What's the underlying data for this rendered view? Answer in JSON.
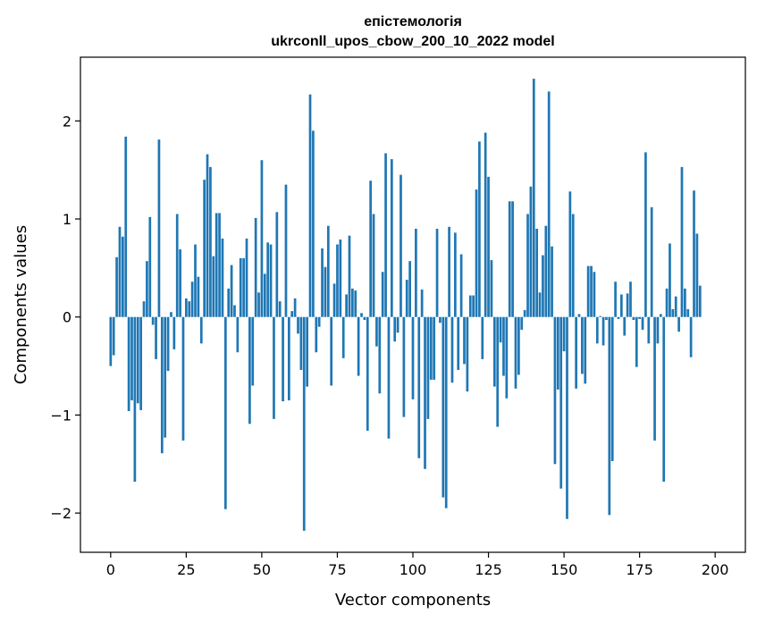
{
  "chart_data": {
    "type": "bar",
    "title": "епістемологія",
    "subtitle": "ukrconll_upos_cbow_200_10_2022 model",
    "xlabel": "Vector components",
    "ylabel": "Components values",
    "xlim": [
      -10,
      210
    ],
    "ylim": [
      -2.4,
      2.65
    ],
    "xticks": [
      0,
      25,
      50,
      75,
      100,
      125,
      150,
      175,
      200
    ],
    "yticks": [
      -2,
      -1,
      0,
      1,
      2
    ],
    "xtick_labels": [
      "0",
      "25",
      "50",
      "75",
      "100",
      "125",
      "150",
      "175",
      "200"
    ],
    "ytick_labels": [
      "−2",
      "−1",
      "0",
      "1",
      "2"
    ],
    "grid": false,
    "bar_color": "#1f77b4",
    "values": [
      -0.5,
      -0.39,
      0.61,
      0.92,
      0.82,
      1.84,
      -0.96,
      -0.85,
      -1.68,
      -0.88,
      -0.95,
      0.16,
      0.57,
      1.02,
      -0.08,
      -0.43,
      1.81,
      -1.39,
      -1.23,
      -0.55,
      0.05,
      -0.33,
      1.05,
      0.69,
      -1.26,
      0.19,
      0.16,
      0.36,
      0.74,
      0.41,
      -0.27,
      1.4,
      1.66,
      1.53,
      0.62,
      1.06,
      1.06,
      0.8,
      -1.96,
      0.29,
      0.53,
      0.12,
      -0.36,
      0.6,
      0.6,
      0.8,
      -1.09,
      -0.7,
      1.01,
      0.25,
      1.6,
      0.44,
      0.76,
      0.74,
      -1.04,
      1.07,
      0.16,
      -0.86,
      1.35,
      -0.85,
      0.06,
      0.19,
      -0.17,
      -0.54,
      -2.18,
      -0.71,
      2.27,
      1.9,
      -0.36,
      -0.1,
      0.7,
      0.51,
      0.93,
      -0.7,
      0.34,
      0.74,
      0.79,
      -0.42,
      0.23,
      0.83,
      0.29,
      0.27,
      -0.6,
      0.04,
      -0.03,
      -1.16,
      1.39,
      1.05,
      -0.3,
      -0.78,
      0.46,
      1.67,
      -1.24,
      1.61,
      -0.25,
      -0.16,
      1.45,
      -1.02,
      0.38,
      0.57,
      -0.84,
      0.9,
      -1.44,
      0.28,
      -1.55,
      -1.04,
      -0.64,
      -0.64,
      0.9,
      -0.06,
      -1.84,
      -1.95,
      0.92,
      -0.67,
      0.86,
      -0.54,
      0.64,
      -0.48,
      -0.76,
      0.22,
      0.22,
      1.3,
      1.79,
      -0.43,
      1.88,
      1.43,
      0.58,
      -0.71,
      -1.12,
      -0.26,
      -0.6,
      -0.83,
      1.18,
      1.18,
      -0.73,
      -0.59,
      -0.13,
      0.07,
      1.05,
      1.33,
      2.43,
      0.9,
      0.25,
      0.63,
      0.93,
      2.3,
      0.72,
      -1.5,
      -0.74,
      -1.75,
      -0.35,
      -2.06,
      1.28,
      1.05,
      -0.73,
      0.03,
      -0.58,
      -0.68,
      0.52,
      0.52,
      0.46,
      -0.27,
      0.01,
      -0.29,
      -0.03,
      -2.02,
      -1.47,
      0.36,
      -0.02,
      0.23,
      -0.19,
      0.24,
      0.36,
      -0.03,
      -0.51,
      -0.02,
      -0.13,
      1.68,
      -0.27,
      1.12,
      -1.26,
      -0.27,
      0.03,
      -1.68,
      0.29,
      0.75,
      0.08,
      0.21,
      -0.15,
      1.53,
      0.29,
      0.08,
      -0.41,
      1.29,
      0.85,
      0.32
    ]
  }
}
